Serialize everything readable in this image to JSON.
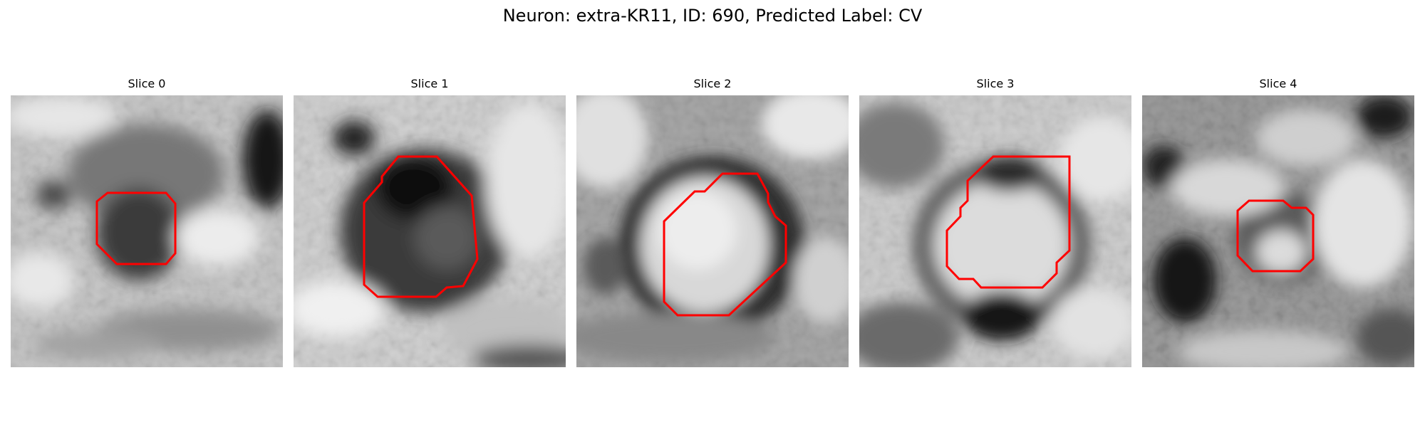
{
  "figure": {
    "title": "Neuron: extra-KR11, ID: 690, Predicted Label: CV"
  },
  "overlay_color": "#ff0000",
  "slices": [
    {
      "title": "Slice 0"
    },
    {
      "title": "Slice 1"
    },
    {
      "title": "Slice 2"
    },
    {
      "title": "Slice 3"
    },
    {
      "title": "Slice 4"
    }
  ]
}
